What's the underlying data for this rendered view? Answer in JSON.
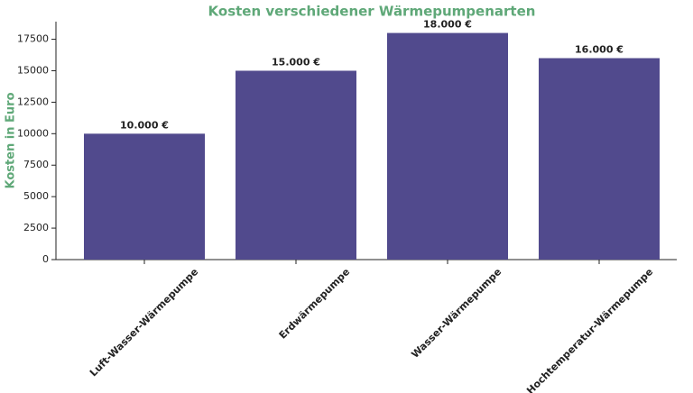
{
  "chart_data": {
    "type": "bar",
    "title": "Kosten verschiedener Wärmepumpenarten",
    "y_label": "Kosten in Euro",
    "categories": [
      "Luft-Wasser-Wärmepumpe",
      "Erdwärmepumpe",
      "Wasser-Wärmepumpe",
      "Hochtemperatur-Wärmepumpe"
    ],
    "values": [
      10000,
      15000,
      18000,
      16000
    ],
    "value_labels": [
      "10.000 €",
      "15.000 €",
      "18.000 €",
      "16.000 €"
    ],
    "color": "#514a8d",
    "title_color": "#5fa878",
    "ylim": [
      0,
      18900
    ],
    "yticks": [
      0,
      2500,
      5000,
      7500,
      10000,
      12500,
      15000,
      17500
    ],
    "grid": false
  }
}
